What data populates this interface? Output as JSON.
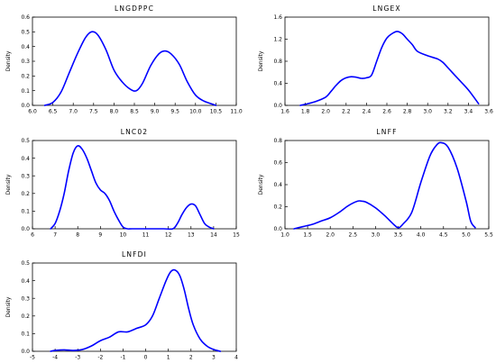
{
  "chart_data": [
    {
      "type": "line",
      "title": "LNGDPPC",
      "ylabel": "Density",
      "xlim": [
        6.0,
        11.0
      ],
      "ylim": [
        0.0,
        0.6
      ],
      "xticks": [
        "6.0",
        "6.5",
        "7.0",
        "7.5",
        "8.0",
        "8.5",
        "9.0",
        "9.5",
        "10.0",
        "10.5",
        "11.0"
      ],
      "yticks": [
        "0.0",
        "0.1",
        "0.2",
        "0.3",
        "0.4",
        "0.5",
        "0.6"
      ],
      "color": "#0000ff",
      "series": [
        {
          "x": [
            6.3,
            6.5,
            6.7,
            6.9,
            7.1,
            7.3,
            7.45,
            7.6,
            7.8,
            8.0,
            8.2,
            8.4,
            8.55,
            8.7,
            8.9,
            9.1,
            9.25,
            9.4,
            9.6,
            9.8,
            10.0,
            10.2,
            10.4,
            10.5
          ],
          "y": [
            0.0,
            0.02,
            0.09,
            0.22,
            0.35,
            0.46,
            0.5,
            0.48,
            0.38,
            0.24,
            0.16,
            0.11,
            0.1,
            0.15,
            0.27,
            0.35,
            0.37,
            0.35,
            0.28,
            0.16,
            0.07,
            0.03,
            0.01,
            0.0
          ]
        }
      ]
    },
    {
      "type": "line",
      "title": "LNGEX",
      "ylabel": "Density",
      "xlim": [
        1.6,
        3.6
      ],
      "ylim": [
        0.0,
        1.6
      ],
      "xticks": [
        "1.6",
        "1.8",
        "2.0",
        "2.2",
        "2.4",
        "2.6",
        "2.8",
        "3.0",
        "3.2",
        "3.4",
        "3.6"
      ],
      "yticks": [
        "0.0",
        "0.4",
        "0.8",
        "1.2",
        "1.6"
      ],
      "color": "#0000ff",
      "series": [
        {
          "x": [
            1.75,
            1.8,
            1.9,
            2.0,
            2.05,
            2.1,
            2.15,
            2.2,
            2.25,
            2.3,
            2.35,
            2.4,
            2.45,
            2.5,
            2.55,
            2.6,
            2.65,
            2.7,
            2.75,
            2.8,
            2.85,
            2.9,
            3.0,
            3.1,
            3.15,
            3.2,
            3.3,
            3.4,
            3.5
          ],
          "y": [
            0.0,
            0.02,
            0.07,
            0.15,
            0.25,
            0.36,
            0.45,
            0.5,
            0.52,
            0.51,
            0.49,
            0.5,
            0.55,
            0.8,
            1.05,
            1.22,
            1.3,
            1.34,
            1.3,
            1.2,
            1.1,
            0.98,
            0.9,
            0.84,
            0.78,
            0.68,
            0.48,
            0.28,
            0.03
          ]
        }
      ]
    },
    {
      "type": "line",
      "title": "LNC02",
      "ylabel": "Density",
      "xlim": [
        6,
        15
      ],
      "ylim": [
        0.0,
        0.5
      ],
      "xticks": [
        "6",
        "7",
        "8",
        "9",
        "10",
        "11",
        "12",
        "13",
        "14",
        "15"
      ],
      "yticks": [
        "0.0",
        "0.1",
        "0.2",
        "0.3",
        "0.4",
        "0.5"
      ],
      "color": "#0000ff",
      "series": [
        {
          "x": [
            6.8,
            7.0,
            7.2,
            7.4,
            7.6,
            7.8,
            8.0,
            8.2,
            8.4,
            8.6,
            8.8,
            9.0,
            9.2,
            9.4,
            9.6,
            9.8,
            10.0,
            10.2,
            10.4,
            11.0,
            11.8,
            12.2,
            12.4,
            12.6,
            12.8,
            13.0,
            13.2,
            13.4,
            13.6,
            13.8,
            14.0
          ],
          "y": [
            0.0,
            0.03,
            0.1,
            0.2,
            0.33,
            0.43,
            0.47,
            0.45,
            0.4,
            0.33,
            0.26,
            0.22,
            0.2,
            0.16,
            0.1,
            0.05,
            0.01,
            0.0,
            0.0,
            0.0,
            0.0,
            0.0,
            0.03,
            0.08,
            0.12,
            0.14,
            0.13,
            0.08,
            0.03,
            0.01,
            0.0
          ]
        }
      ]
    },
    {
      "type": "line",
      "title": "LNFF",
      "ylabel": "Density",
      "xlim": [
        1.0,
        5.5
      ],
      "ylim": [
        0.0,
        0.8
      ],
      "xticks": [
        "1.0",
        "1.5",
        "2.0",
        "2.5",
        "3.0",
        "3.5",
        "4.0",
        "4.5",
        "5.0",
        "5.5"
      ],
      "yticks": [
        "0.0",
        "0.2",
        "0.4",
        "0.6",
        "0.8"
      ],
      "color": "#0000ff",
      "series": [
        {
          "x": [
            1.2,
            1.4,
            1.6,
            1.8,
            2.0,
            2.2,
            2.4,
            2.6,
            2.7,
            2.8,
            3.0,
            3.2,
            3.4,
            3.5,
            3.6,
            3.8,
            4.0,
            4.2,
            4.35,
            4.45,
            4.6,
            4.8,
            5.0,
            5.1,
            5.2
          ],
          "y": [
            0.0,
            0.02,
            0.04,
            0.07,
            0.1,
            0.15,
            0.21,
            0.25,
            0.25,
            0.24,
            0.19,
            0.12,
            0.04,
            0.01,
            0.04,
            0.15,
            0.42,
            0.66,
            0.76,
            0.78,
            0.74,
            0.55,
            0.25,
            0.07,
            0.01
          ]
        }
      ]
    },
    {
      "type": "line",
      "title": "LNFDI",
      "ylabel": "Density",
      "xlim": [
        -5,
        4
      ],
      "ylim": [
        0.0,
        0.5
      ],
      "xticks": [
        "-5",
        "-4",
        "-3",
        "-2",
        "-1",
        "0",
        "1",
        "2",
        "3",
        "4"
      ],
      "yticks": [
        "0.0",
        "0.1",
        "0.2",
        "0.3",
        "0.4",
        "0.5"
      ],
      "color": "#0000ff",
      "series": [
        {
          "x": [
            -4.2,
            -4.0,
            -3.6,
            -3.2,
            -2.8,
            -2.4,
            -2.0,
            -1.6,
            -1.2,
            -0.8,
            -0.4,
            0.0,
            0.3,
            0.6,
            0.9,
            1.1,
            1.3,
            1.5,
            1.7,
            1.9,
            2.1,
            2.4,
            2.7,
            3.0,
            3.3
          ],
          "y": [
            0.0,
            0.005,
            0.008,
            0.005,
            0.01,
            0.03,
            0.06,
            0.08,
            0.11,
            0.11,
            0.13,
            0.15,
            0.2,
            0.3,
            0.4,
            0.45,
            0.46,
            0.43,
            0.35,
            0.24,
            0.15,
            0.07,
            0.03,
            0.01,
            0.0
          ]
        }
      ]
    }
  ]
}
